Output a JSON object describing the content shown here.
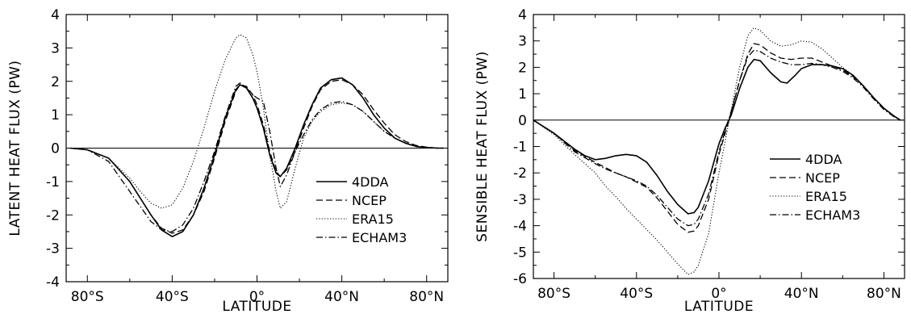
{
  "chart_data": [
    {
      "type": "line",
      "xlabel": "LATITUDE",
      "ylabel": "LATENT HEAT FLUX (PW)",
      "xlim": [
        -90,
        90
      ],
      "ylim": [
        -4,
        4
      ],
      "xticks": [
        -80,
        -40,
        0,
        40,
        80
      ],
      "xtick_labels": [
        "80°S",
        "40°S",
        "0°",
        "40°N",
        "80°N"
      ],
      "yticks": [
        -4,
        -3,
        -2,
        -1,
        0,
        1,
        2,
        3,
        4
      ],
      "ytick_labels": [
        "-4",
        "-3",
        "-2",
        "-1",
        "0",
        "1",
        "2",
        "3",
        "4"
      ],
      "zero_line": true,
      "legend_position": "lower-right",
      "series": [
        {
          "name": "4DDA",
          "style": "solid",
          "x": [
            -88,
            -80,
            -70,
            -60,
            -50,
            -45,
            -40,
            -35,
            -30,
            -25,
            -20,
            -15,
            -10,
            -8,
            -5,
            -2,
            0,
            3,
            6,
            9,
            11,
            14,
            18,
            22,
            26,
            30,
            35,
            40,
            45,
            50,
            55,
            60,
            65,
            70,
            75,
            80,
            85,
            88
          ],
          "y": [
            0,
            -0.05,
            -0.3,
            -1.0,
            -2.0,
            -2.45,
            -2.65,
            -2.5,
            -2.0,
            -1.2,
            -0.2,
            0.9,
            1.75,
            1.9,
            1.8,
            1.5,
            1.2,
            0.6,
            -0.2,
            -0.75,
            -0.85,
            -0.6,
            0.0,
            0.7,
            1.3,
            1.8,
            2.05,
            2.1,
            1.9,
            1.5,
            1.0,
            0.6,
            0.3,
            0.15,
            0.05,
            0.02,
            0,
            0
          ]
        },
        {
          "name": "NCEP",
          "style": "dashed",
          "x": [
            -88,
            -80,
            -70,
            -60,
            -50,
            -45,
            -40,
            -35,
            -30,
            -25,
            -20,
            -15,
            -10,
            -8,
            -5,
            -2,
            0,
            3,
            6,
            9,
            11,
            14,
            18,
            22,
            26,
            30,
            35,
            40,
            45,
            50,
            55,
            60,
            65,
            70,
            75,
            80,
            85,
            88
          ],
          "y": [
            0,
            -0.05,
            -0.3,
            -1.0,
            -2.0,
            -2.4,
            -2.55,
            -2.45,
            -2.0,
            -1.3,
            -0.3,
            0.8,
            1.7,
            1.9,
            1.85,
            1.6,
            1.3,
            0.7,
            -0.1,
            -0.7,
            -0.85,
            -0.65,
            -0.1,
            0.6,
            1.25,
            1.75,
            2.0,
            2.05,
            1.9,
            1.6,
            1.15,
            0.75,
            0.4,
            0.2,
            0.08,
            0.03,
            0,
            0
          ]
        },
        {
          "name": "ERA15",
          "style": "dotted",
          "x": [
            -88,
            -80,
            -70,
            -60,
            -55,
            -50,
            -45,
            -40,
            -35,
            -30,
            -25,
            -20,
            -15,
            -10,
            -8,
            -5,
            -2,
            0,
            3,
            6,
            9,
            11,
            14,
            18,
            22,
            26,
            30,
            35,
            40,
            45,
            50,
            55,
            60,
            65,
            70,
            75,
            80,
            85,
            88
          ],
          "y": [
            0,
            -0.05,
            -0.3,
            -0.9,
            -1.3,
            -1.65,
            -1.8,
            -1.7,
            -1.2,
            -0.4,
            0.6,
            1.7,
            2.65,
            3.3,
            3.4,
            3.3,
            2.8,
            2.3,
            1.2,
            -0.2,
            -1.3,
            -1.8,
            -1.6,
            -0.6,
            0.3,
            0.8,
            1.1,
            1.3,
            1.35,
            1.3,
            1.1,
            0.8,
            0.5,
            0.3,
            0.15,
            0.06,
            0.02,
            0,
            0
          ]
        },
        {
          "name": "ECHAM3",
          "style": "dashdot",
          "x": [
            -88,
            -80,
            -70,
            -60,
            -50,
            -45,
            -40,
            -35,
            -30,
            -25,
            -20,
            -15,
            -10,
            -8,
            -5,
            -2,
            0,
            3,
            6,
            9,
            11,
            14,
            18,
            22,
            26,
            30,
            35,
            40,
            45,
            50,
            55,
            60,
            65,
            70,
            75,
            80,
            85,
            88
          ],
          "y": [
            0,
            -0.05,
            -0.4,
            -1.3,
            -2.2,
            -2.45,
            -2.5,
            -2.3,
            -1.8,
            -1.0,
            -0.1,
            0.95,
            1.85,
            1.95,
            1.8,
            1.6,
            1.5,
            1.4,
            0.5,
            -0.6,
            -1.15,
            -0.8,
            -0.1,
            0.4,
            0.85,
            1.15,
            1.35,
            1.4,
            1.3,
            1.1,
            0.8,
            0.5,
            0.3,
            0.15,
            0.05,
            0.02,
            0,
            0
          ]
        }
      ]
    },
    {
      "type": "line",
      "xlabel": "LATITUDE",
      "ylabel": "SENSIBLE HEAT FLUX (PW)",
      "xlim": [
        -90,
        90
      ],
      "ylim": [
        -6,
        4
      ],
      "xticks": [
        -80,
        -40,
        0,
        40,
        80
      ],
      "xtick_labels": [
        "80°S",
        "40°S",
        "0°",
        "40°N",
        "80°N"
      ],
      "yticks": [
        -6,
        -5,
        -4,
        -3,
        -2,
        -1,
        0,
        1,
        2,
        3,
        4
      ],
      "ytick_labels": [
        "-6",
        "-5",
        "-4",
        "-3",
        "-2",
        "-1",
        "0",
        "1",
        "2",
        "3",
        "4"
      ],
      "zero_line": true,
      "legend_position": "lower-right",
      "series": [
        {
          "name": "4DDA",
          "style": "solid",
          "x": [
            -90,
            -80,
            -70,
            -65,
            -60,
            -55,
            -50,
            -45,
            -40,
            -35,
            -30,
            -25,
            -20,
            -15,
            -12,
            -10,
            -5,
            0,
            3,
            6,
            10,
            14,
            17,
            20,
            25,
            30,
            33,
            37,
            40,
            45,
            50,
            55,
            60,
            65,
            70,
            75,
            80,
            85,
            88
          ],
          "y": [
            0,
            -0.5,
            -1.1,
            -1.35,
            -1.5,
            -1.45,
            -1.35,
            -1.3,
            -1.35,
            -1.6,
            -2.1,
            -2.7,
            -3.2,
            -3.55,
            -3.5,
            -3.3,
            -2.3,
            -0.9,
            -0.3,
            0.2,
            1.2,
            2.0,
            2.3,
            2.25,
            1.8,
            1.45,
            1.4,
            1.7,
            1.95,
            2.1,
            2.1,
            2.05,
            1.95,
            1.7,
            1.3,
            0.85,
            0.45,
            0.15,
            0
          ]
        },
        {
          "name": "NCEP",
          "style": "dashed",
          "x": [
            -90,
            -80,
            -70,
            -60,
            -55,
            -50,
            -45,
            -40,
            -35,
            -30,
            -25,
            -20,
            -15,
            -12,
            -10,
            -5,
            0,
            3,
            6,
            10,
            14,
            17,
            20,
            25,
            30,
            35,
            40,
            45,
            50,
            55,
            60,
            65,
            70,
            75,
            80,
            85,
            88
          ],
          "y": [
            0,
            -0.5,
            -1.15,
            -1.6,
            -1.8,
            -2.0,
            -2.15,
            -2.35,
            -2.55,
            -2.95,
            -3.45,
            -3.95,
            -4.25,
            -4.2,
            -4.0,
            -3.0,
            -1.3,
            -0.5,
            0.3,
            1.5,
            2.5,
            2.9,
            2.85,
            2.55,
            2.35,
            2.3,
            2.35,
            2.35,
            2.2,
            2.05,
            1.9,
            1.65,
            1.3,
            0.85,
            0.45,
            0.15,
            0
          ]
        },
        {
          "name": "ERA15",
          "style": "dotted",
          "x": [
            -90,
            -80,
            -70,
            -60,
            -55,
            -50,
            -45,
            -40,
            -35,
            -30,
            -25,
            -20,
            -15,
            -12,
            -10,
            -5,
            0,
            3,
            6,
            10,
            14,
            17,
            20,
            25,
            30,
            35,
            40,
            45,
            50,
            55,
            60,
            65,
            70,
            75,
            80,
            85,
            88
          ],
          "y": [
            0,
            -0.55,
            -1.3,
            -2.0,
            -2.5,
            -2.9,
            -3.35,
            -3.75,
            -4.15,
            -4.55,
            -5.0,
            -5.45,
            -5.85,
            -5.75,
            -5.5,
            -4.3,
            -2.0,
            -0.8,
            0.4,
            2.0,
            3.2,
            3.5,
            3.4,
            3.0,
            2.8,
            2.85,
            3.0,
            2.95,
            2.7,
            2.35,
            2.0,
            1.7,
            1.3,
            0.85,
            0.45,
            0.15,
            0
          ]
        },
        {
          "name": "ECHAM3",
          "style": "dashdot",
          "x": [
            -90,
            -80,
            -70,
            -60,
            -55,
            -50,
            -45,
            -40,
            -35,
            -30,
            -25,
            -20,
            -15,
            -12,
            -10,
            -5,
            0,
            3,
            6,
            10,
            14,
            17,
            20,
            25,
            30,
            35,
            40,
            45,
            50,
            55,
            60,
            65,
            70,
            75,
            80,
            85,
            88
          ],
          "y": [
            0,
            -0.5,
            -1.2,
            -1.65,
            -1.85,
            -2.0,
            -2.15,
            -2.3,
            -2.5,
            -2.85,
            -3.3,
            -3.75,
            -4.0,
            -3.95,
            -3.75,
            -2.8,
            -1.2,
            -0.4,
            0.35,
            1.5,
            2.4,
            2.65,
            2.6,
            2.35,
            2.2,
            2.1,
            2.1,
            2.15,
            2.1,
            2.0,
            1.85,
            1.6,
            1.25,
            0.8,
            0.4,
            0.12,
            0
          ]
        }
      ]
    }
  ]
}
